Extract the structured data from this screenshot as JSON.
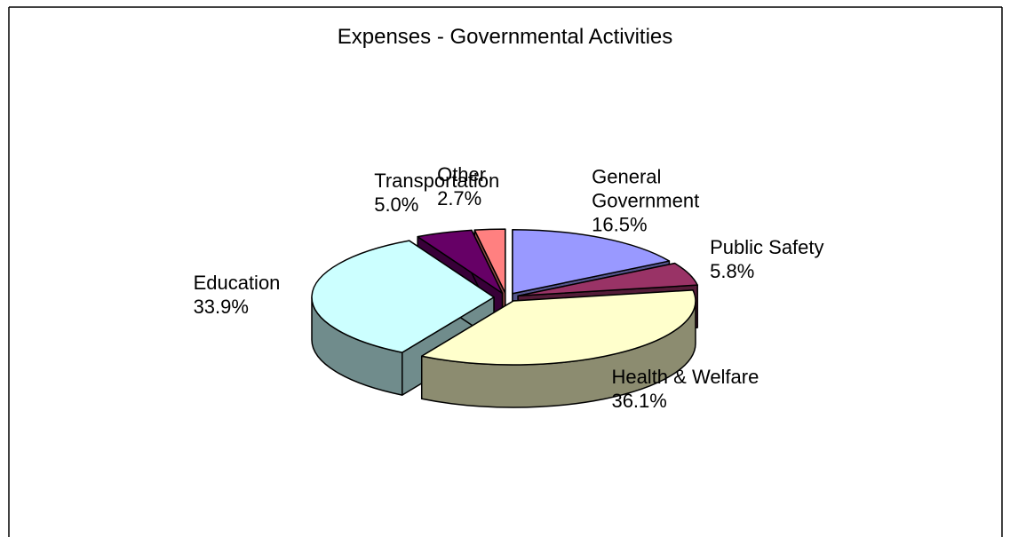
{
  "chart_data": {
    "type": "pie3d",
    "title": "Expenses - Governmental Activities",
    "categories": [
      "General Government",
      "Public Safety",
      "Health & Welfare",
      "Education",
      "Transportation",
      "Other"
    ],
    "values": [
      16.5,
      5.8,
      36.1,
      33.9,
      5.0,
      2.7
    ],
    "value_labels": [
      "16.5%",
      "5.8%",
      "36.1%",
      "33.9%",
      "5.0%",
      "2.7%"
    ],
    "colors": [
      "#9999ff",
      "#993366",
      "#ffffcc",
      "#ccffff",
      "#660066",
      "#ff8080"
    ]
  }
}
